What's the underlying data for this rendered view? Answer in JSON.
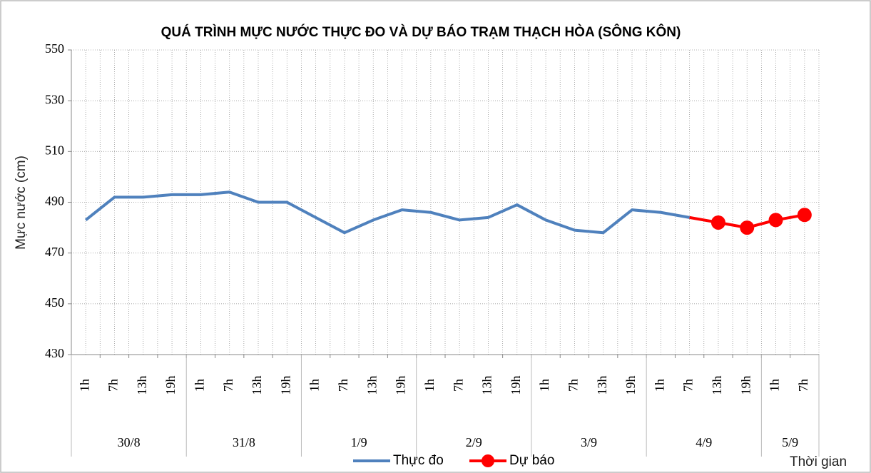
{
  "chart_data": {
    "type": "line",
    "title": "QUÁ TRÌNH MỰC NƯỚC THỰC ĐO VÀ DỰ BÁO TRẠM THẠCH HÒA (SÔNG KÔN)",
    "y_label": "Mực nước (cm)",
    "x_label": "Thời gian",
    "categories": [
      "1h",
      "7h",
      "13h",
      "19h",
      "1h",
      "7h",
      "13h",
      "19h",
      "1h",
      "7h",
      "13h",
      "19h",
      "1h",
      "7h",
      "13h",
      "19h",
      "1h",
      "7h",
      "13h",
      "19h",
      "1h",
      "7h",
      "13h",
      "19h",
      "1h",
      "7h"
    ],
    "groups": [
      {
        "label": "30/8",
        "size": 4
      },
      {
        "label": "31/8",
        "size": 4
      },
      {
        "label": "1/9",
        "size": 4
      },
      {
        "label": "2/9",
        "size": 4
      },
      {
        "label": "3/9",
        "size": 4
      },
      {
        "label": "4/9",
        "size": 4
      },
      {
        "label": "5/9",
        "size": 2
      }
    ],
    "series": [
      {
        "name": "Thực đo",
        "color": "#4f81bd",
        "values": [
          483,
          492,
          492,
          493,
          493,
          494,
          490,
          490,
          484,
          478,
          483,
          487,
          486,
          483,
          484,
          489,
          483,
          479,
          478,
          487,
          486,
          484,
          null,
          null,
          null,
          null
        ]
      },
      {
        "name": "Dự báo",
        "color": "#ff0000",
        "values": [
          null,
          null,
          null,
          null,
          null,
          null,
          null,
          null,
          null,
          null,
          null,
          null,
          null,
          null,
          null,
          null,
          null,
          null,
          null,
          null,
          null,
          484,
          482,
          480,
          483,
          485
        ]
      }
    ],
    "ylim": [
      430,
      550
    ],
    "yticks": [
      430,
      450,
      470,
      490,
      510,
      530,
      550
    ],
    "grid": true
  }
}
